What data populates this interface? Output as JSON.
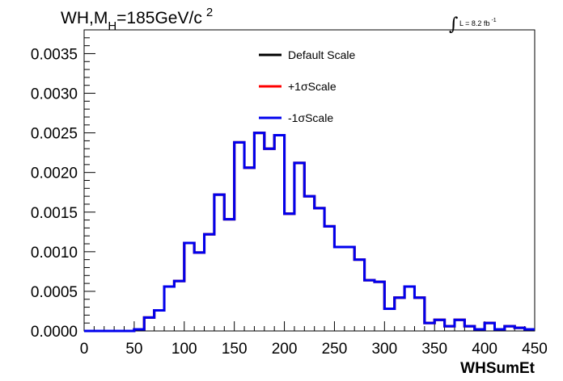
{
  "chart_data": {
    "type": "histogram-step",
    "title_main": "WH,M",
    "title_sub": "H",
    "title_rest": "=185GeV/c",
    "title_sup": "2",
    "lumi_symbol": "∫",
    "lumi_text": "L = 8.2 fb",
    "lumi_sup": "-1",
    "xlabel": "WHSumEt",
    "ylabel": "",
    "xlim": [
      0,
      450
    ],
    "ylim": [
      0,
      0.0038
    ],
    "x_ticks": [
      0,
      50,
      100,
      150,
      200,
      250,
      300,
      350,
      400,
      450
    ],
    "x_tick_labels": [
      "0",
      "50",
      "100",
      "150",
      "200",
      "250",
      "300",
      "350",
      "400",
      "450"
    ],
    "y_ticks": [
      0,
      0.0005,
      0.001,
      0.0015,
      0.002,
      0.0025,
      0.003,
      0.0035
    ],
    "y_tick_labels": [
      "0.0000",
      "0.0005",
      "0.0010",
      "0.0015",
      "0.0020",
      "0.0025",
      "0.0030",
      "0.0035"
    ],
    "bin_width": 10,
    "bin_low_edges": [
      0,
      10,
      20,
      30,
      40,
      50,
      60,
      70,
      80,
      90,
      100,
      110,
      120,
      130,
      140,
      150,
      160,
      170,
      180,
      190,
      200,
      210,
      220,
      230,
      240,
      250,
      260,
      270,
      280,
      290,
      300,
      310,
      320,
      330,
      340,
      350,
      360,
      370,
      380,
      390,
      400,
      410,
      420,
      430,
      440
    ],
    "series": [
      {
        "name": "Default Scale",
        "color": "#000000",
        "values": [
          0.0,
          0.0,
          0.0,
          0.0,
          0.0,
          2e-05,
          0.00017,
          0.00026,
          0.00056,
          0.00063,
          0.00111,
          0.00099,
          0.00122,
          0.00172,
          0.00141,
          0.00238,
          0.00206,
          0.0025,
          0.0023,
          0.00247,
          0.00148,
          0.00212,
          0.0017,
          0.00155,
          0.00132,
          0.00106,
          0.00106,
          0.0009,
          0.00064,
          0.00062,
          0.00028,
          0.00042,
          0.00056,
          0.00042,
          0.0001,
          0.00014,
          6e-05,
          0.00014,
          6e-05,
          2e-05,
          0.0001,
          2e-05,
          6e-05,
          4e-05,
          2e-05
        ]
      },
      {
        "name": "+1σScale",
        "color": "#ff0000",
        "values": [
          0.0,
          0.0,
          0.0,
          0.0,
          0.0,
          2e-05,
          0.00017,
          0.00026,
          0.00056,
          0.00063,
          0.00111,
          0.00099,
          0.00122,
          0.00172,
          0.00141,
          0.00238,
          0.00206,
          0.0025,
          0.0023,
          0.00247,
          0.00148,
          0.00212,
          0.0017,
          0.00155,
          0.00132,
          0.00106,
          0.00106,
          0.0009,
          0.00064,
          0.00062,
          0.00028,
          0.00042,
          0.00056,
          0.00042,
          0.0001,
          0.00014,
          6e-05,
          0.00014,
          6e-05,
          2e-05,
          0.0001,
          2e-05,
          6e-05,
          4e-05,
          2e-05
        ]
      },
      {
        "name": "-1σScale",
        "color": "#0000ee",
        "values": [
          0.0,
          0.0,
          0.0,
          0.0,
          0.0,
          2e-05,
          0.00017,
          0.00026,
          0.00056,
          0.00063,
          0.00111,
          0.00099,
          0.00122,
          0.00172,
          0.00141,
          0.00238,
          0.00206,
          0.0025,
          0.0023,
          0.00247,
          0.00148,
          0.00212,
          0.0017,
          0.00155,
          0.00132,
          0.00106,
          0.00106,
          0.0009,
          0.00064,
          0.00062,
          0.00028,
          0.00042,
          0.00056,
          0.00042,
          0.0001,
          0.00014,
          6e-05,
          0.00014,
          6e-05,
          2e-05,
          0.0001,
          2e-05,
          6e-05,
          4e-05,
          2e-05
        ]
      }
    ],
    "grid": false,
    "legend_position": "top-center",
    "frame_color": "#000000"
  }
}
